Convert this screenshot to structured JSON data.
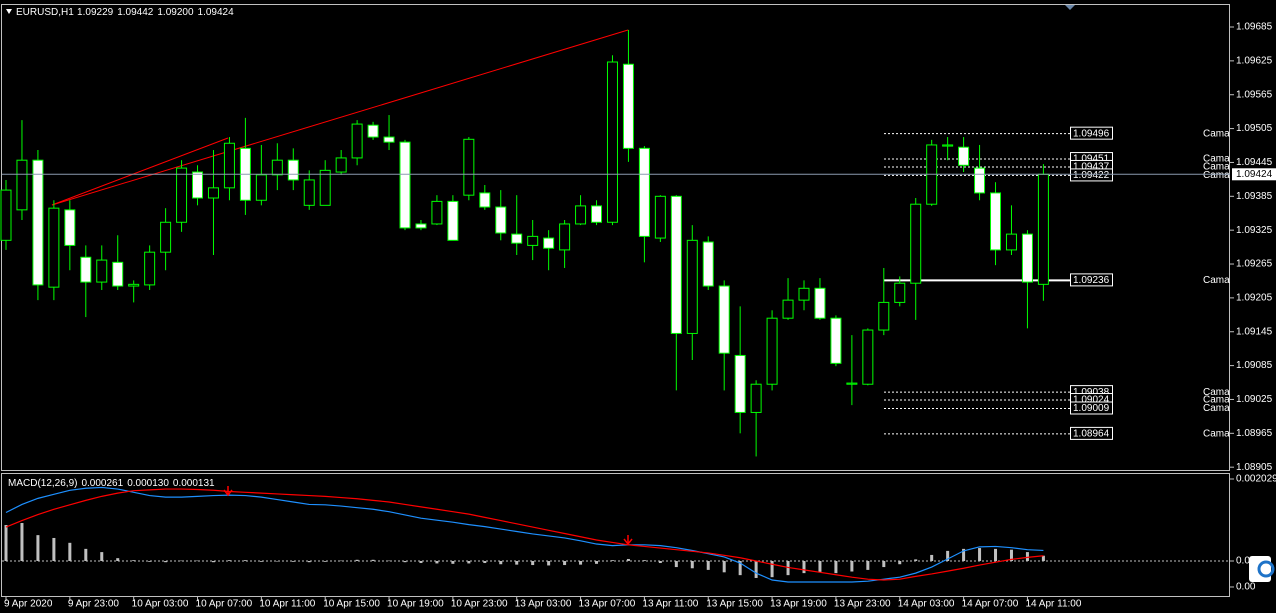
{
  "chart_data": [
    {
      "type": "candlestick",
      "symbol": "EURUSD,H1",
      "header_values": [
        "1.09229",
        "1.09442",
        "1.09200",
        "1.09424"
      ],
      "categories": [
        "9 Apr 2020",
        null,
        null,
        null,
        "9 Apr 23:00",
        null,
        null,
        null,
        "10 Apr 03:00",
        null,
        null,
        null,
        "10 Apr 07:00",
        null,
        null,
        null,
        "10 Apr 11:00",
        null,
        null,
        null,
        "10 Apr 15:00",
        null,
        null,
        null,
        "10 Apr 19:00",
        null,
        null,
        null,
        "10 Apr 23:00",
        null,
        null,
        null,
        "13 Apr 03:00",
        null,
        null,
        null,
        "13 Apr 07:00",
        null,
        null,
        null,
        "13 Apr 11:00",
        null,
        null,
        null,
        "13 Apr 15:00",
        null,
        null,
        null,
        "13 Apr 19:00",
        null,
        null,
        null,
        "13 Apr 23:00",
        null,
        null,
        null,
        "14 Apr 03:00",
        null,
        null,
        null,
        "14 Apr 07:00",
        null,
        null,
        null,
        "14 Apr 11:00",
        null
      ],
      "open": [
        1.09307,
        1.09361,
        1.09449,
        1.09224,
        1.09361,
        1.09277,
        1.09233,
        1.09268,
        1.09226,
        1.09228,
        1.09286,
        1.09339,
        1.09428,
        1.09382,
        1.094,
        1.0947,
        1.09378,
        1.09423,
        1.09449,
        1.09369,
        1.09369,
        1.09428,
        1.09453,
        1.09511,
        1.0949,
        1.09481,
        1.09336,
        1.09336,
        1.09376,
        1.09387,
        1.09391,
        1.09366,
        1.09318,
        1.09298,
        1.09311,
        1.0929,
        1.09336,
        1.09368,
        1.09339,
        1.09619,
        1.0947,
        1.09311,
        1.09385,
        1.09142,
        1.09304,
        1.09226,
        1.09103,
        1.09002,
        1.09052,
        1.09169,
        1.09201,
        1.09222,
        1.09169,
        1.09052,
        1.09052,
        1.09148,
        1.09197,
        1.09231,
        1.09371,
        1.09474,
        1.09472,
        1.09435,
        1.09391,
        1.0929,
        1.09318,
        1.09229
      ],
      "high": [
        1.09414,
        1.0952,
        1.09467,
        1.09378,
        1.09378,
        1.09298,
        1.09298,
        1.09316,
        1.09236,
        1.09298,
        1.09364,
        1.09449,
        1.0944,
        1.09467,
        1.0949,
        1.09524,
        1.09476,
        1.09479,
        1.0947,
        1.09431,
        1.09449,
        1.09467,
        1.0952,
        1.09517,
        1.09529,
        1.09485,
        1.09343,
        1.09387,
        1.09387,
        1.0949,
        1.09405,
        1.09396,
        1.09387,
        1.09343,
        1.09325,
        1.09343,
        1.09387,
        1.09378,
        1.09635,
        1.0968,
        1.09474,
        1.09387,
        1.09387,
        1.09334,
        1.09314,
        1.09236,
        1.0919,
        1.09059,
        1.09183,
        1.0924,
        1.09236,
        1.0924,
        1.09174,
        1.09139,
        1.09151,
        1.09258,
        1.09243,
        1.09382,
        1.09485,
        1.0949,
        1.0949,
        1.09476,
        1.0941,
        1.09369,
        1.09325,
        1.09442
      ],
      "low": [
        1.0929,
        1.09343,
        1.09201,
        1.09201,
        1.09254,
        1.09171,
        1.09219,
        1.09219,
        1.09197,
        1.09219,
        1.09254,
        1.09322,
        1.09369,
        1.09281,
        1.09378,
        1.09352,
        1.09369,
        1.09396,
        1.09396,
        1.09361,
        1.09369,
        1.09423,
        1.0944,
        1.09485,
        1.09467,
        1.09325,
        1.09325,
        1.09334,
        1.09307,
        1.09378,
        1.09361,
        1.09307,
        1.09281,
        1.09272,
        1.09254,
        1.09258,
        1.09334,
        1.09334,
        1.09334,
        1.09446,
        1.09268,
        1.09304,
        1.09041,
        1.09095,
        1.09219,
        1.09041,
        1.08965,
        1.08924,
        1.09041,
        1.09166,
        1.09183,
        1.09166,
        1.09084,
        1.09015,
        1.0905,
        1.09139,
        1.0919,
        1.09166,
        1.09368,
        1.09449,
        1.09428,
        1.09378,
        1.09263,
        1.09281,
        1.09151,
        1.092
      ],
      "close": [
        1.09396,
        1.09449,
        1.09228,
        1.09364,
        1.09298,
        1.09233,
        1.09272,
        1.09226,
        1.09229,
        1.09286,
        1.09339,
        1.09435,
        1.09382,
        1.094,
        1.09479,
        1.09378,
        1.09423,
        1.09449,
        1.09414,
        1.09414,
        1.09431,
        1.09453,
        1.09513,
        1.0949,
        1.09481,
        1.09329,
        1.09329,
        1.09376,
        1.09307,
        1.09486,
        1.09366,
        1.0932,
        1.09302,
        1.09314,
        1.09293,
        1.09336,
        1.09368,
        1.09339,
        1.09623,
        1.0947,
        1.09314,
        1.09385,
        1.09142,
        1.09307,
        1.09226,
        1.09107,
        1.09002,
        1.09052,
        1.09169,
        1.09201,
        1.09222,
        1.09169,
        1.09089,
        1.09054,
        1.09148,
        1.09197,
        1.09231,
        1.09371,
        1.09476,
        1.09476,
        1.0944,
        1.09391,
        1.0929,
        1.09318,
        1.09233,
        1.09424
      ],
      "up_color": "#000000",
      "down_color": "#ffffff",
      "wick_color": "#00ff00",
      "price_line_color": "#8c9bb0",
      "ylim": [
        1.089,
        1.09724
      ],
      "yticks": [
        1.09685,
        1.09625,
        1.09565,
        1.09505,
        1.09445,
        1.09385,
        1.09325,
        1.09265,
        1.09205,
        1.09145,
        1.09085,
        1.09025,
        1.08965,
        1.08905
      ],
      "levels": [
        {
          "value": 1.09496,
          "label": "Cama"
        },
        {
          "value": 1.09451,
          "label": "Cama"
        },
        {
          "value": 1.09437,
          "label": "Cama"
        },
        {
          "value": 1.09422,
          "label": "Cama"
        },
        {
          "value": 1.09236,
          "label": "Cama"
        },
        {
          "value": 1.09038,
          "label": "Cama"
        },
        {
          "value": 1.09024,
          "label": "Cama"
        },
        {
          "value": 1.09009,
          "label": "Cama"
        },
        {
          "value": 1.08964,
          "label": "Cama"
        }
      ],
      "pivot_level": 4
    },
    {
      "type": "macd",
      "title": "MACD(12,26,9)",
      "header_values": [
        "0.000261",
        "0.000130",
        "0.000131"
      ],
      "ylim": [
        -0.000891,
        0.002153
      ],
      "yticks": [
        0.002029,
        {
          "value": 0,
          "label": "0.00"
        },
        {
          "value": -0.000643,
          "label": "0.00"
        }
      ],
      "series": [
        {
          "kind": "histogram",
          "color": "#c0c0c0",
          "values": [
            0.00089,
            0.00094,
            0.00064,
            0.00057,
            0.00045,
            0.0003,
            0.00022,
            7e-05,
            2e-05,
            -2e-05,
            -3e-05,
            1e-05,
            1e-05,
            -3e-05,
            2e-05,
            2e-05,
            -2e-05,
            -1e-05,
            -2e-05,
            -3e-05,
            -2e-05,
            1e-05,
            3e-05,
            3e-05,
            1e-05,
            -3e-05,
            -5e-05,
            -6e-05,
            -7e-05,
            -6e-05,
            -5e-05,
            -8e-05,
            -9e-05,
            -0.0001,
            -0.00011,
            -0.0001,
            -9e-05,
            -7e-05,
            2e-05,
            5e-05,
            2e-05,
            -5e-05,
            -0.00015,
            -0.00018,
            -0.00022,
            -0.00028,
            -0.00035,
            -0.00042,
            -0.0004,
            -0.00035,
            -0.0003,
            -0.00027,
            -0.0003,
            -0.00026,
            -0.00022,
            -0.00015,
            -8e-05,
            4e-05,
            0.00015,
            0.00025,
            0.0003,
            0.00032,
            0.0003,
            0.00028,
            0.00022,
            0.000131
          ]
        },
        {
          "kind": "line",
          "color": "#1e90ff",
          "values": [
            0.0012,
            0.0014,
            0.00155,
            0.00165,
            0.00175,
            0.0018,
            0.00182,
            0.00178,
            0.0017,
            0.00162,
            0.00158,
            0.00158,
            0.0016,
            0.00162,
            0.00163,
            0.00162,
            0.00158,
            0.00152,
            0.00146,
            0.0014,
            0.00139,
            0.00136,
            0.00132,
            0.00128,
            0.00122,
            0.00114,
            0.00106,
            0.00101,
            0.00096,
            0.0009,
            0.00085,
            0.00079,
            0.00073,
            0.00067,
            0.00062,
            0.00057,
            0.0005,
            0.00042,
            0.00038,
            0.0004,
            0.0004,
            0.00038,
            0.00033,
            0.00026,
            0.00018,
            0.0001,
            -5e-05,
            -0.0003,
            -0.00047,
            -0.00052,
            -0.00052,
            -0.00052,
            -0.00052,
            -0.00052,
            -0.0005,
            -0.00045,
            -0.0004,
            -0.0003,
            -0.00015,
            5e-05,
            0.00025,
            0.00035,
            0.00036,
            0.00033,
            0.00028,
            0.000261
          ]
        },
        {
          "kind": "line",
          "color": "#ff0000",
          "values": [
            0.00084,
            0.001,
            0.00115,
            0.00128,
            0.00139,
            0.0015,
            0.0016,
            0.00168,
            0.00174,
            0.00176,
            0.00178,
            0.00178,
            0.00177,
            0.00175,
            0.00172,
            0.0017,
            0.00168,
            0.00166,
            0.00164,
            0.00162,
            0.0016,
            0.00157,
            0.00154,
            0.0015,
            0.00146,
            0.0014,
            0.00134,
            0.00128,
            0.00122,
            0.00116,
            0.00108,
            0.001,
            0.00092,
            0.00084,
            0.00076,
            0.00068,
            0.0006,
            0.00052,
            0.00046,
            0.0004,
            0.00036,
            0.00032,
            0.00028,
            0.00024,
            0.0002,
            0.00014,
            8e-05,
            0,
            -8e-05,
            -0.00016,
            -0.00022,
            -0.00028,
            -0.00034,
            -0.0004,
            -0.00045,
            -0.00047,
            -0.00045,
            -0.00038,
            -0.00032,
            -0.00025,
            -0.00018,
            -0.0001,
            -3e-05,
            4e-05,
            9e-05,
            0.00013
          ]
        }
      ]
    }
  ]
}
